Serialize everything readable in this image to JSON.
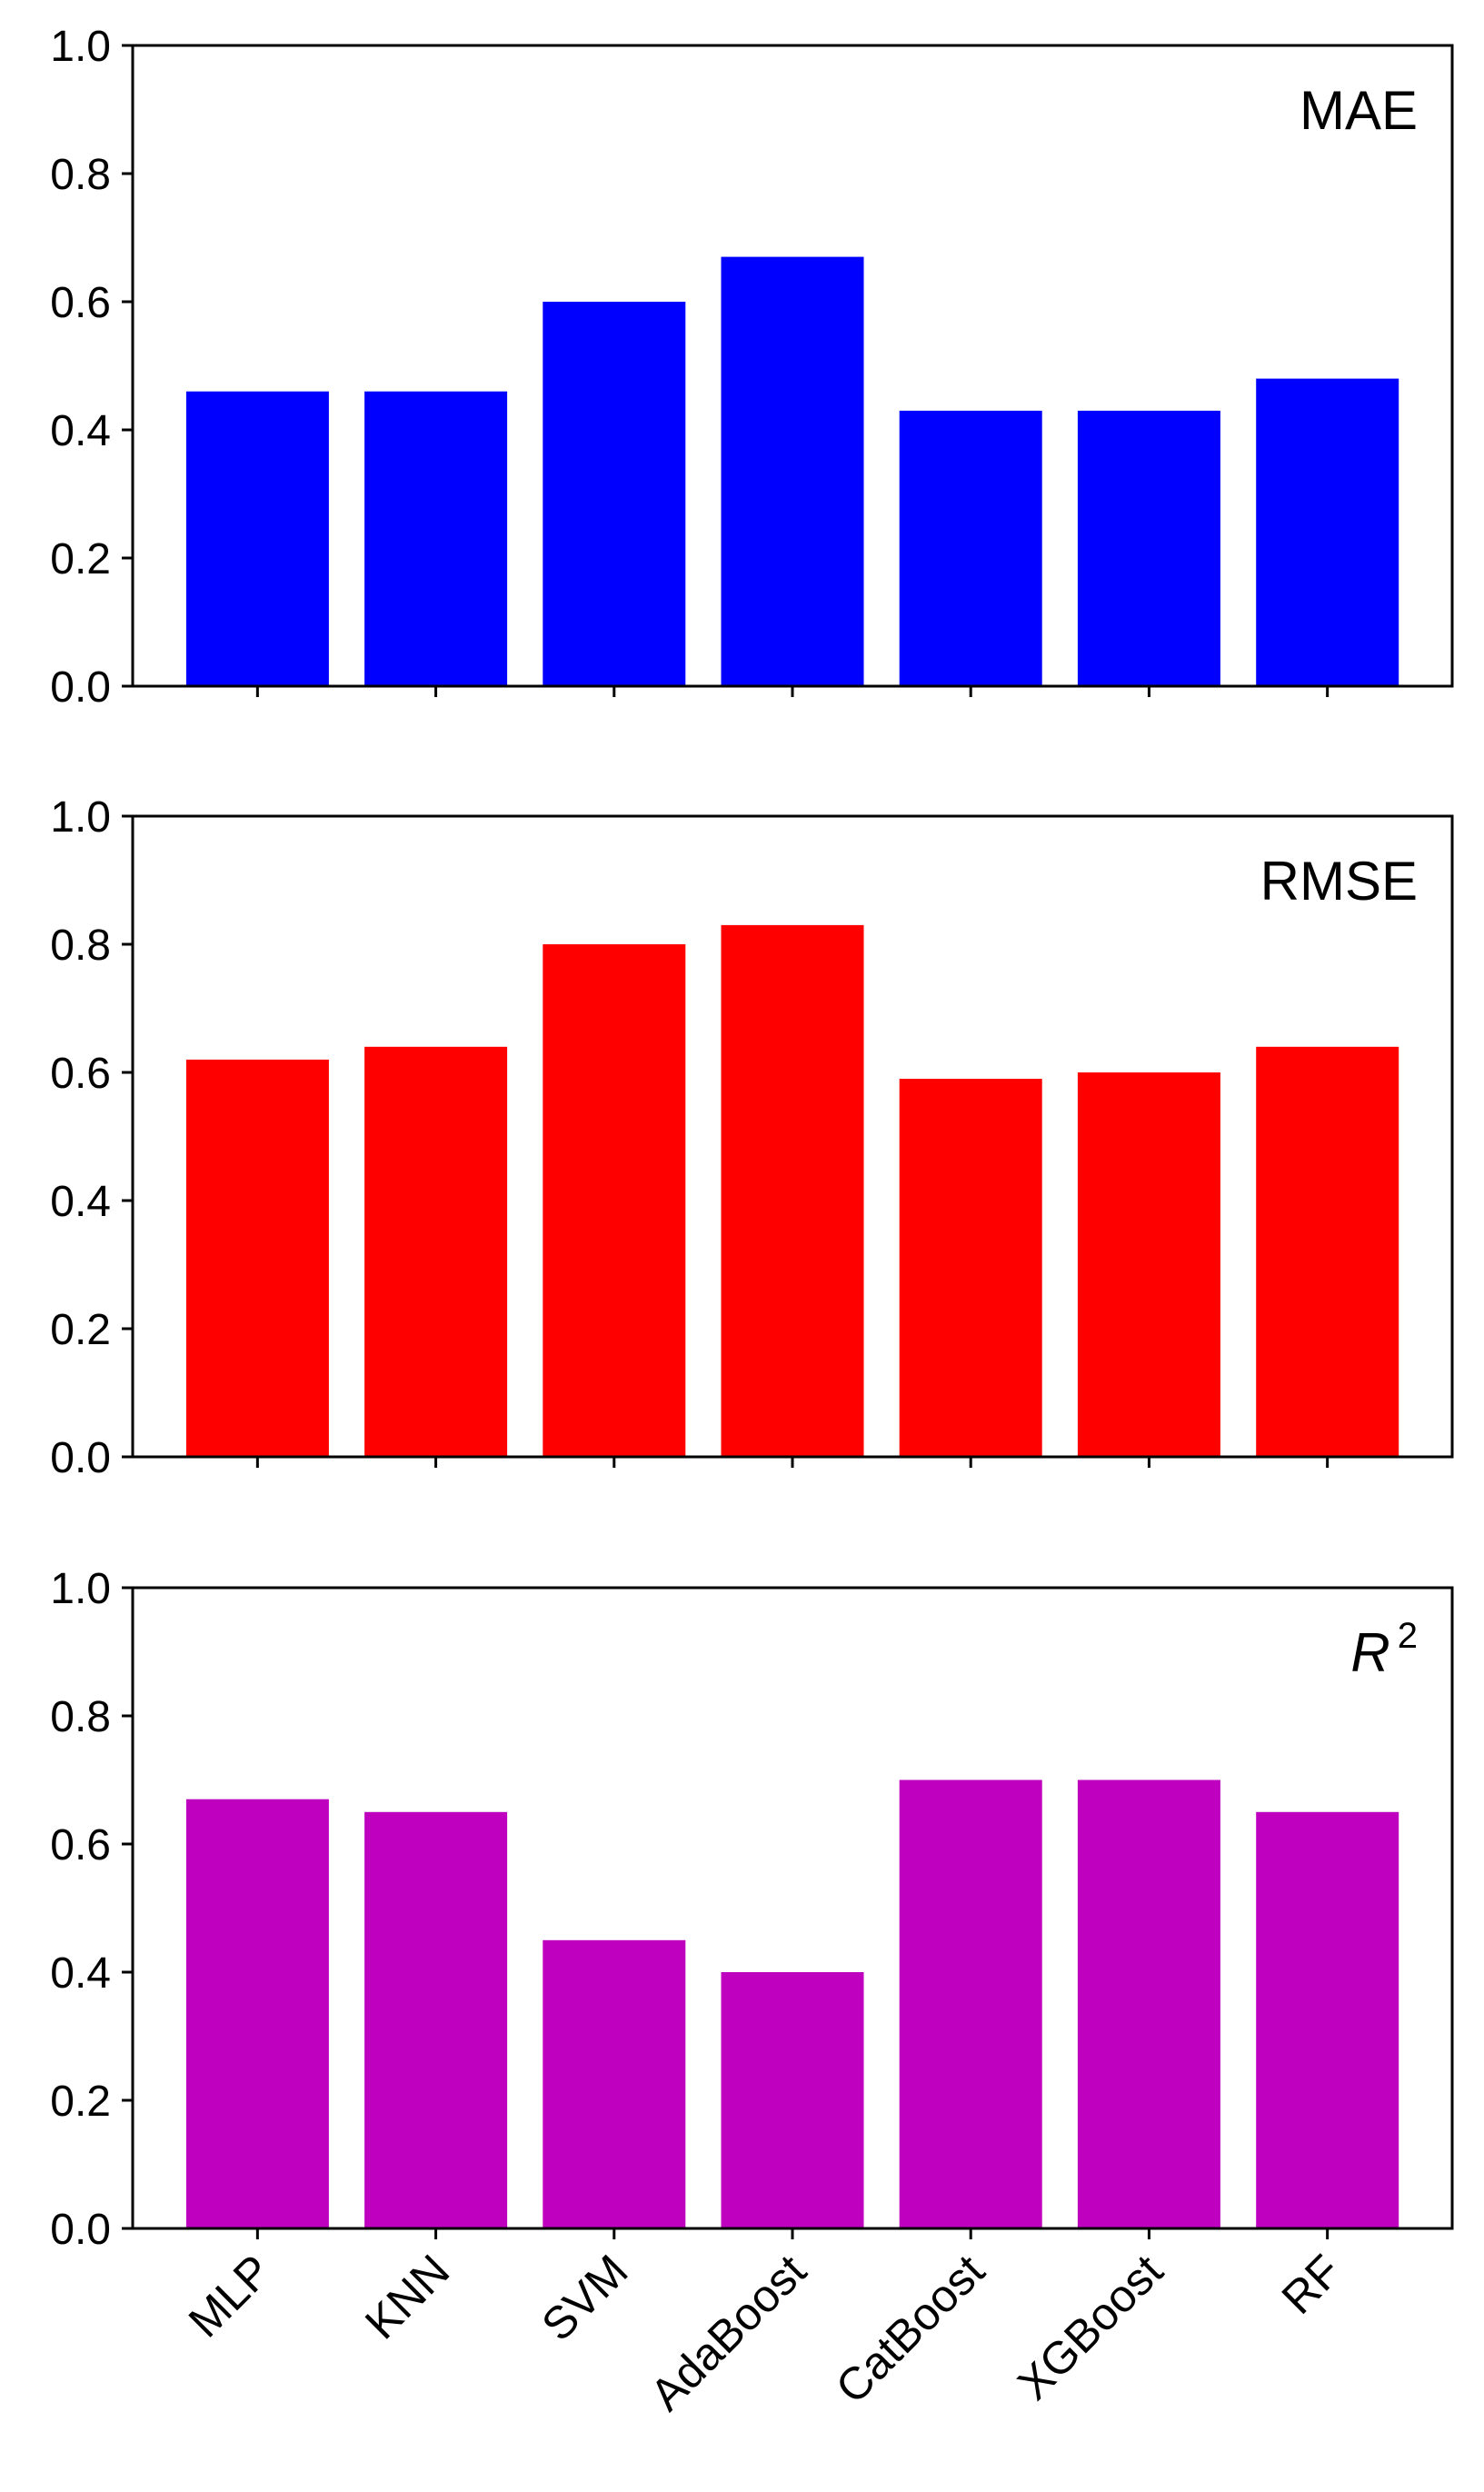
{
  "chart_data": {
    "type": "bar",
    "layout": "3 vertically stacked panels sharing the x-axis",
    "categories": [
      "MLP",
      "KNN",
      "SVM",
      "AdaBoost",
      "CatBoost",
      "XGBoost",
      "RF"
    ],
    "ylim": [
      0,
      1.0
    ],
    "yticks": [
      0.0,
      0.2,
      0.4,
      0.6,
      0.8,
      1.0
    ],
    "ytick_labels": [
      "0.0",
      "0.2",
      "0.4",
      "0.6",
      "0.8",
      "1.0"
    ],
    "panels": [
      {
        "title": "MAE",
        "title_position": "top-right",
        "color": "#0000ff",
        "values": [
          0.46,
          0.46,
          0.6,
          0.67,
          0.43,
          0.43,
          0.48
        ]
      },
      {
        "title": "RMSE",
        "title_position": "top-right",
        "color": "#ff0000",
        "values": [
          0.62,
          0.64,
          0.8,
          0.83,
          0.59,
          0.6,
          0.64
        ]
      },
      {
        "title": "R",
        "title_superscript": "2",
        "title_italic": true,
        "title_position": "top-right",
        "color": "#bf00bf",
        "values": [
          0.67,
          0.65,
          0.45,
          0.4,
          0.7,
          0.7,
          0.65
        ]
      }
    ]
  }
}
